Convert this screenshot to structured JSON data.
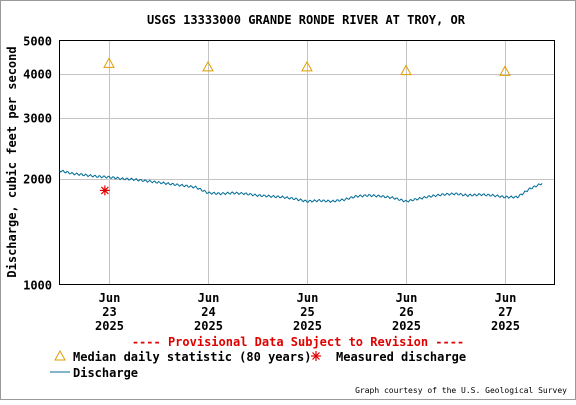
{
  "chart_data": {
    "type": "line",
    "title": "USGS 13333000 GRANDE RONDE RIVER AT TROY, OR",
    "ylabel": "Discharge, cubic feet per second",
    "xlabel": "",
    "yscale": "log",
    "ylim": [
      1000,
      5000
    ],
    "yticks": [
      1000,
      2000,
      3000,
      4000,
      5000
    ],
    "ytick_labels": [
      "1000",
      "2000",
      "3000",
      "4000",
      "5000"
    ],
    "xlim": [
      "2025-06-22 12:00",
      "2025-06-27 12:00"
    ],
    "xticks": [
      {
        "x": "2025-06-23 00:00",
        "label": [
          "Jun",
          "23",
          "2025"
        ]
      },
      {
        "x": "2025-06-24 00:00",
        "label": [
          "Jun",
          "24",
          "2025"
        ]
      },
      {
        "x": "2025-06-25 00:00",
        "label": [
          "Jun",
          "25",
          "2025"
        ]
      },
      {
        "x": "2025-06-26 00:00",
        "label": [
          "Jun",
          "26",
          "2025"
        ]
      },
      {
        "x": "2025-06-27 00:00",
        "label": [
          "Jun",
          "27",
          "2025"
        ]
      }
    ],
    "grid": true,
    "annotation": "---- Provisional Data Subject to Revision ----",
    "credit": "Graph courtesy of the U.S. Geological Survey",
    "legend": [
      {
        "name": "Median daily statistic (80 years)",
        "marker": "triangle",
        "color": "#e09d00"
      },
      {
        "name": "Measured discharge",
        "marker": "asterisk",
        "color": "#e00000"
      },
      {
        "name": "Discharge",
        "marker": "line",
        "color": "#006b96"
      }
    ],
    "series": [
      {
        "name": "Median daily statistic (80 years)",
        "kind": "marker",
        "color": "#e09d00",
        "points": [
          {
            "x": "2025-06-23 00:00",
            "y": 4300
          },
          {
            "x": "2025-06-24 00:00",
            "y": 4200
          },
          {
            "x": "2025-06-25 00:00",
            "y": 4200
          },
          {
            "x": "2025-06-26 00:00",
            "y": 4100
          },
          {
            "x": "2025-06-27 00:00",
            "y": 4080
          }
        ]
      },
      {
        "name": "Measured discharge",
        "kind": "marker",
        "color": "#e00000",
        "points": [
          {
            "x": "2025-06-22 23:00",
            "y": 1860
          }
        ]
      },
      {
        "name": "Discharge",
        "kind": "line",
        "color": "#006b96",
        "points": [
          {
            "x": "2025-06-22 12:00",
            "y": 2120
          },
          {
            "x": "2025-06-22 15:00",
            "y": 2080
          },
          {
            "x": "2025-06-22 18:00",
            "y": 2060
          },
          {
            "x": "2025-06-22 21:00",
            "y": 2040
          },
          {
            "x": "2025-06-23 00:00",
            "y": 2030
          },
          {
            "x": "2025-06-23 03:00",
            "y": 2010
          },
          {
            "x": "2025-06-23 06:00",
            "y": 2000
          },
          {
            "x": "2025-06-23 09:00",
            "y": 1980
          },
          {
            "x": "2025-06-23 12:00",
            "y": 1960
          },
          {
            "x": "2025-06-23 15:00",
            "y": 1940
          },
          {
            "x": "2025-06-23 18:00",
            "y": 1920
          },
          {
            "x": "2025-06-23 21:00",
            "y": 1900
          },
          {
            "x": "2025-06-24 00:00",
            "y": 1830
          },
          {
            "x": "2025-06-24 03:00",
            "y": 1820
          },
          {
            "x": "2025-06-24 06:00",
            "y": 1830
          },
          {
            "x": "2025-06-24 09:00",
            "y": 1820
          },
          {
            "x": "2025-06-24 12:00",
            "y": 1800
          },
          {
            "x": "2025-06-24 15:00",
            "y": 1790
          },
          {
            "x": "2025-06-24 18:00",
            "y": 1780
          },
          {
            "x": "2025-06-24 21:00",
            "y": 1760
          },
          {
            "x": "2025-06-25 00:00",
            "y": 1730
          },
          {
            "x": "2025-06-25 03:00",
            "y": 1740
          },
          {
            "x": "2025-06-25 06:00",
            "y": 1730
          },
          {
            "x": "2025-06-25 09:00",
            "y": 1750
          },
          {
            "x": "2025-06-25 12:00",
            "y": 1790
          },
          {
            "x": "2025-06-25 15:00",
            "y": 1800
          },
          {
            "x": "2025-06-25 18:00",
            "y": 1790
          },
          {
            "x": "2025-06-25 21:00",
            "y": 1770
          },
          {
            "x": "2025-06-26 00:00",
            "y": 1730
          },
          {
            "x": "2025-06-26 03:00",
            "y": 1760
          },
          {
            "x": "2025-06-26 06:00",
            "y": 1790
          },
          {
            "x": "2025-06-26 09:00",
            "y": 1810
          },
          {
            "x": "2025-06-26 12:00",
            "y": 1820
          },
          {
            "x": "2025-06-26 15:00",
            "y": 1800
          },
          {
            "x": "2025-06-26 18:00",
            "y": 1810
          },
          {
            "x": "2025-06-26 21:00",
            "y": 1800
          },
          {
            "x": "2025-06-27 00:00",
            "y": 1780
          },
          {
            "x": "2025-06-27 03:00",
            "y": 1780
          },
          {
            "x": "2025-06-27 06:00",
            "y": 1880
          },
          {
            "x": "2025-06-27 09:00",
            "y": 1950
          }
        ]
      }
    ]
  }
}
